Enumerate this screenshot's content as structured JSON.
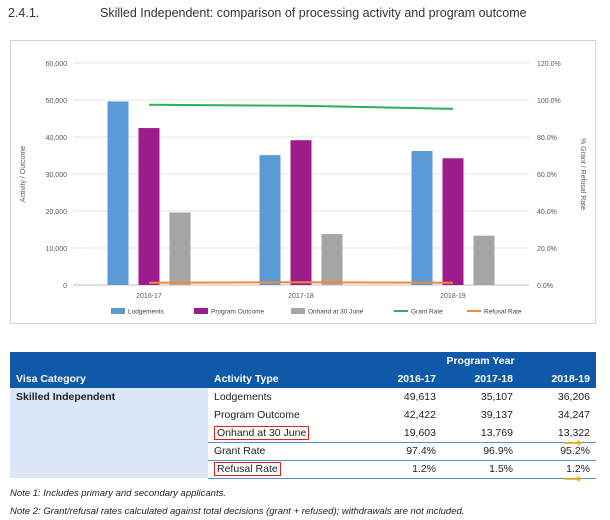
{
  "heading": {
    "number": "2.4.1.",
    "title": "Skilled Independent: comparison of processing activity and program outcome"
  },
  "chart_data": {
    "type": "bar",
    "categories": [
      "2016-17",
      "2017-18",
      "2018-19"
    ],
    "series": [
      {
        "name": "Lodgements",
        "values": [
          49613,
          35107,
          36206
        ],
        "color": "#5b9bd5",
        "axis": "left"
      },
      {
        "name": "Program Outcome",
        "values": [
          42422,
          39137,
          34247
        ],
        "color": "#9e1b8c",
        "axis": "left"
      },
      {
        "name": "Onhand at 30 June",
        "values": [
          19603,
          13769,
          13322
        ],
        "color": "#a5a5a5",
        "axis": "left"
      },
      {
        "name": "Grant Rate",
        "values": [
          97.4,
          96.9,
          95.2
        ],
        "color": "#2bb457",
        "axis": "right",
        "kind": "line"
      },
      {
        "name": "Refusal Rate",
        "values": [
          1.2,
          1.5,
          1.2
        ],
        "color": "#f08a3c",
        "axis": "right",
        "kind": "line"
      }
    ],
    "ylabel": "Activity / Outcome",
    "y2label": "% Grant / Refusal Rate",
    "ylim": [
      0,
      60000
    ],
    "y2lim": [
      0,
      120
    ],
    "yticks": [
      "0",
      "10,000",
      "20,000",
      "30,000",
      "40,000",
      "50,000",
      "60,000"
    ],
    "y2ticks": [
      "0.0%",
      "20.0%",
      "40.0%",
      "60.0%",
      "80.0%",
      "100.0%",
      "120.0%"
    ],
    "grid": true,
    "legend": "bottom"
  },
  "table": {
    "group_header": "Program Year",
    "headers": [
      "Visa Category",
      "Activity Type",
      "2016-17",
      "2017-18",
      "2018-19"
    ],
    "category": "Skilled Independent",
    "rows": [
      {
        "label": "Lodgements",
        "values": [
          "49,613",
          "35,107",
          "36,206"
        ]
      },
      {
        "label": "Program Outcome",
        "values": [
          "42,422",
          "39,137",
          "34,247"
        ]
      },
      {
        "label": "Onhand at 30 June",
        "values": [
          "19,603",
          "13,769",
          "13,322"
        ]
      },
      {
        "label": "Grant Rate",
        "values": [
          "97.4%",
          "96.9%",
          "95.2%"
        ]
      },
      {
        "label": "Refusal Rate",
        "values": [
          "1.2%",
          "1.5%",
          "1.2%"
        ]
      }
    ]
  },
  "notes": {
    "note1": "Note 1: Includes primary and secondary applicants.",
    "note2": "Note 2: Grant/refusal rates calculated against total decisions (grant + refused); withdrawals are not included."
  },
  "annotation_color": "#e0201b",
  "arrow_color": "#f2a900"
}
